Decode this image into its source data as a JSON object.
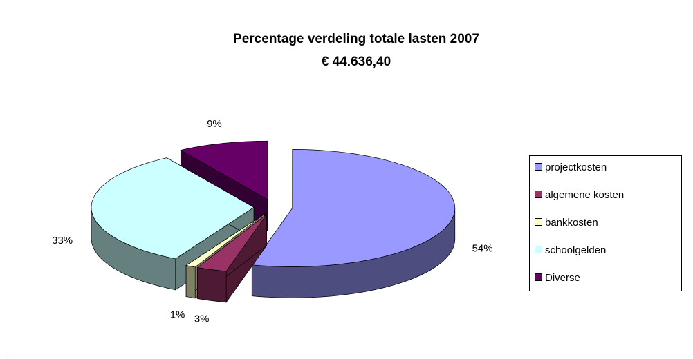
{
  "chart_data": {
    "type": "pie",
    "title": "Percentage verdeling totale lasten 2007",
    "subtitle": "€ 44.636,40",
    "categories": [
      "projectkosten",
      "algemene kosten",
      "bankkosten",
      "schoolgelden",
      "Diverse"
    ],
    "values": [
      54,
      3,
      1,
      33,
      9
    ],
    "value_labels": [
      "54%",
      "3%",
      "1%",
      "33%",
      "9%"
    ],
    "colors": [
      "#9999ff",
      "#993366",
      "#ffffcc",
      "#ccffff",
      "#660066"
    ],
    "legend": "right"
  }
}
